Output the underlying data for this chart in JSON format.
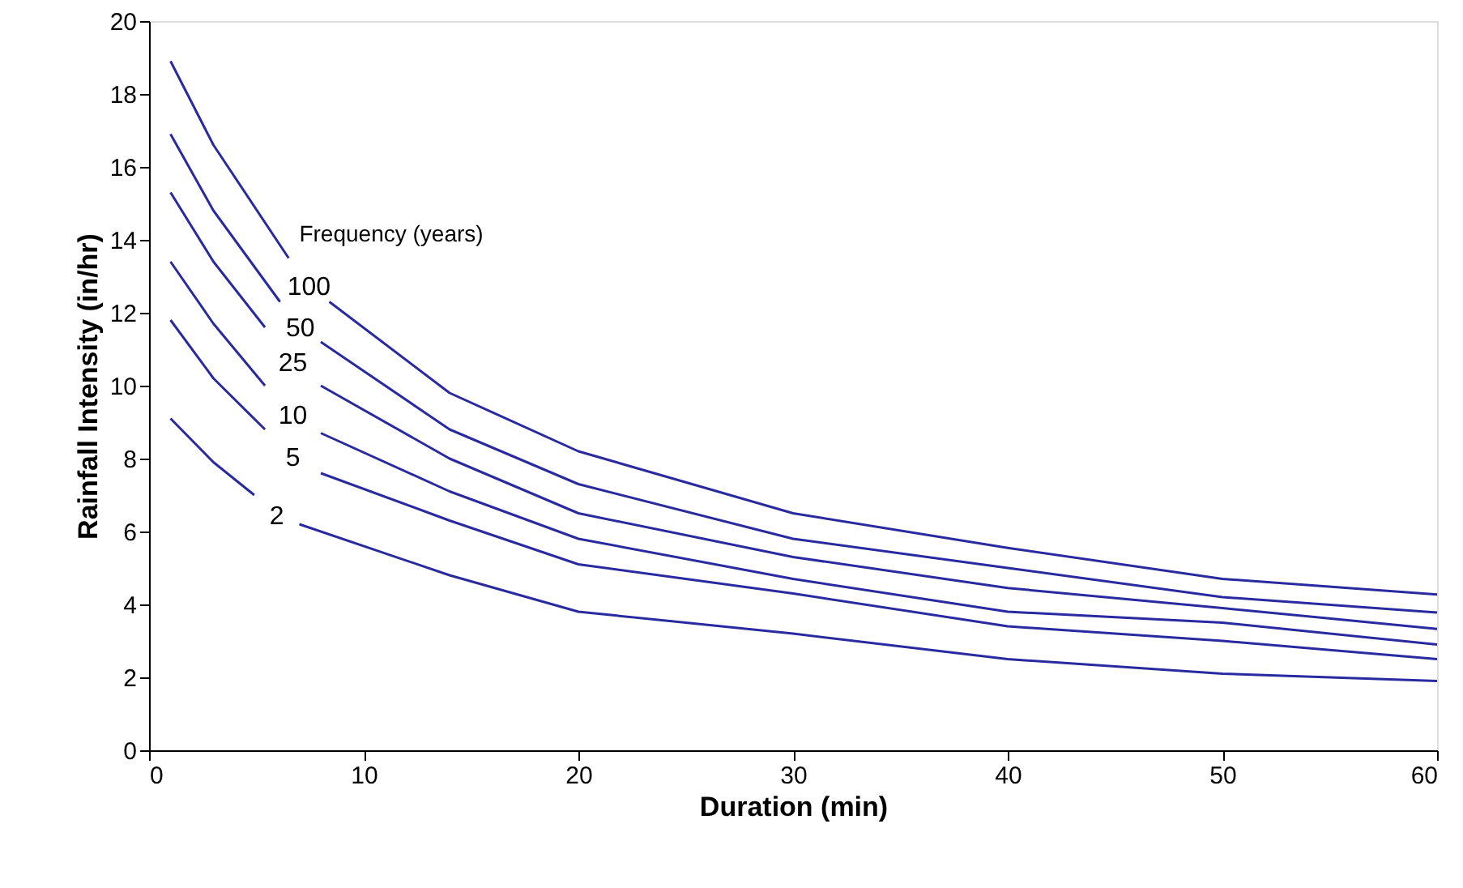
{
  "chart_data": {
    "type": "line",
    "xlabel": "Duration (min)",
    "ylabel": "Rainfall Intensity (in/hr)",
    "legend_title": "Frequency (years)",
    "xlim": [
      0,
      60
    ],
    "xticks": [
      0,
      10,
      20,
      30,
      40,
      50,
      60
    ],
    "ylim": [
      0,
      20
    ],
    "yticks": [
      0,
      2,
      4,
      6,
      8,
      10,
      12,
      14,
      16,
      18,
      20
    ],
    "grid": false,
    "legend": false,
    "marker": "none",
    "line_style": "solid",
    "series": [
      {
        "name": "100",
        "color": "#2a2aa0",
        "x": [
          1,
          3,
          6.5,
          7.4,
          8.4,
          14,
          20,
          30,
          40,
          50,
          60
        ],
        "values": [
          18.9,
          16.6,
          13.5,
          null,
          12.3,
          9.8,
          8.2,
          6.5,
          5.55,
          4.7,
          4.27
        ]
      },
      {
        "name": "50",
        "color": "#2a2aa0",
        "x": [
          1,
          3,
          6.1,
          7,
          8,
          14,
          20,
          30,
          40,
          50,
          60
        ],
        "values": [
          16.9,
          14.8,
          12.3,
          null,
          11.2,
          8.8,
          7.3,
          5.8,
          5.0,
          4.2,
          3.78
        ]
      },
      {
        "name": "25",
        "color": "#2a2aa0",
        "x": [
          1,
          3,
          5.4,
          6.7,
          8,
          14,
          20,
          30,
          40,
          50,
          60
        ],
        "values": [
          15.3,
          13.4,
          11.6,
          null,
          10.0,
          8.0,
          6.5,
          5.3,
          4.45,
          3.9,
          3.33
        ]
      },
      {
        "name": "10",
        "color": "#2a2aa0",
        "x": [
          1,
          3,
          5.4,
          6.7,
          8,
          14,
          20,
          30,
          40,
          50,
          60
        ],
        "values": [
          13.4,
          11.7,
          10.0,
          null,
          8.7,
          7.1,
          5.8,
          4.7,
          3.8,
          3.5,
          2.9
        ]
      },
      {
        "name": "5",
        "color": "#2a2aa0",
        "x": [
          1,
          3,
          5.4,
          6.7,
          8,
          14,
          20,
          30,
          40,
          50,
          60
        ],
        "values": [
          11.8,
          10.2,
          8.8,
          null,
          7.6,
          6.3,
          5.1,
          4.3,
          3.4,
          3.0,
          2.5
        ]
      },
      {
        "name": "2",
        "color": "#2a2aa0",
        "x": [
          1,
          3,
          4.9,
          6,
          7,
          14,
          20,
          30,
          40,
          50,
          60
        ],
        "values": [
          9.1,
          7.9,
          7.0,
          null,
          6.2,
          4.8,
          3.8,
          3.2,
          2.5,
          2.1,
          1.9
        ]
      }
    ]
  }
}
